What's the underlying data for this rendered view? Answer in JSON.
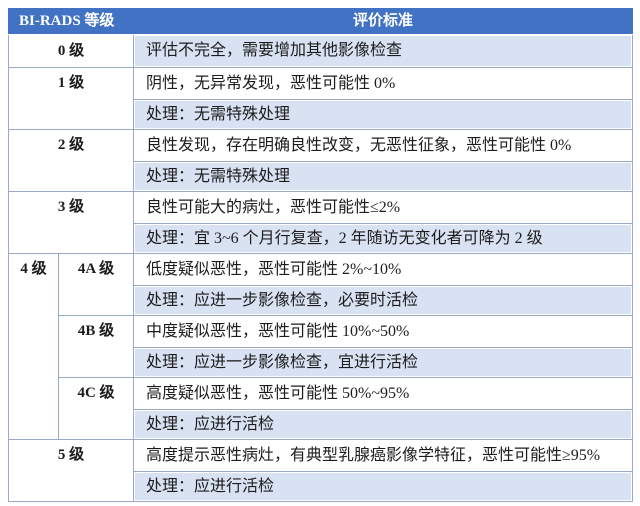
{
  "table": {
    "header": {
      "grade_col": "BI-RADS 等级",
      "criteria_col": "评价标准"
    }
  },
  "grades": {
    "g0": {
      "label": "0 级",
      "criteria": "评估不完全，需要增加其他影像检查"
    },
    "g1": {
      "label": "1 级",
      "criteria": "阴性，无异常发现，恶性可能性 0%",
      "management": "处理：无需特殊处理"
    },
    "g2": {
      "label": "2 级",
      "criteria": "良性发现，存在明确良性改变，无恶性征象，恶性可能性 0%",
      "management": "处理：无需特殊处理"
    },
    "g3": {
      "label": "3 级",
      "criteria": "良性可能大的病灶，恶性可能性≤2%",
      "management": "处理：宜 3~6 个月行复查，2 年随访无变化者可降为 2 级"
    },
    "g4": {
      "label": "4 级",
      "sub": [
        {
          "label": "4A 级",
          "criteria": "低度疑似恶性，恶性可能性 2%~10%",
          "management": "处理：应进一步影像检查，必要时活检"
        },
        {
          "label": "4B 级",
          "criteria": "中度疑似恶性，恶性可能性 10%~50%",
          "management": "处理：应进一步影像检查，宜进行活检"
        },
        {
          "label": "4C 级",
          "criteria": "高度疑似恶性，恶性可能性 50%~95%",
          "management": "处理：应进行活检"
        }
      ]
    },
    "g5": {
      "label": "5 级",
      "criteria": "高度提示恶性病灶，有典型乳腺癌影像学特征，恶性可能性≥95%",
      "management": "处理：应进行活检"
    }
  },
  "colors": {
    "header_bg": "#4272C4",
    "header_text": "#FFFFFF",
    "row_shade": "#D9E2F3",
    "border": "#9AA9C4",
    "text": "#1C1C1C"
  }
}
